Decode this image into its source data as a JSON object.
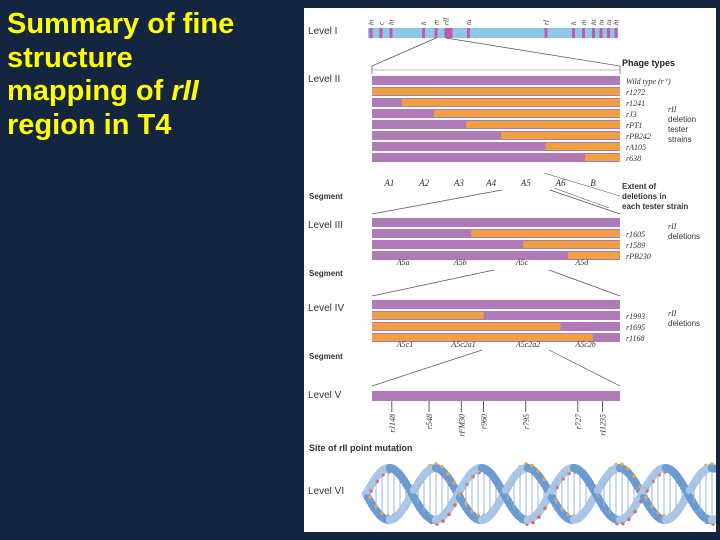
{
  "slide": {
    "title_lines": [
      "Summary of fine",
      "structure",
      "mapping of ",
      "region in T4"
    ],
    "title_gene": "rII",
    "title_color": "#ffff00",
    "background_color": "#13253f"
  },
  "figure": {
    "colors": {
      "bar": "#b07ab8",
      "deletion": "#f0a040",
      "level1_bar": "#8fc8e6",
      "helix": "#7aaad8"
    },
    "level_labels": [
      "Level I",
      "Level II",
      "Level III",
      "Level IV",
      "Level V",
      "Level VI"
    ],
    "level1_markers": [
      "ht",
      "c",
      "ht",
      "h",
      "m",
      "rII",
      "tu",
      "rI",
      "h",
      "m",
      "ht",
      "tu",
      "tu",
      "ht"
    ],
    "phage_types_heading": "Phage types",
    "wild_type_label": "Wild type (r⁺)",
    "level2": {
      "strains": [
        "r1272",
        "r1241",
        "rJ3",
        "rPT1",
        "rPB242",
        "rA105",
        "r638"
      ],
      "deletion_starts": [
        0.0,
        0.12,
        0.25,
        0.38,
        0.52,
        0.7,
        0.86
      ],
      "segments": [
        "A1",
        "A2",
        "A3",
        "A4",
        "A5",
        "A6",
        "B"
      ],
      "group_label": [
        "rII",
        "deletion",
        "tester",
        "strains"
      ],
      "extent_note": [
        "Extent of",
        "deletions in",
        "each tester strain"
      ]
    },
    "level3": {
      "strains": [
        "r1605",
        "r1589",
        "rPB230"
      ],
      "deletion_starts": [
        0.4,
        0.61,
        0.79
      ],
      "segments": [
        "A5a",
        "A5b",
        "A5c",
        "A5d"
      ],
      "group_label": [
        "rII",
        "deletions"
      ]
    },
    "level4": {
      "strains": [
        "r1993",
        "r1695",
        "r1168"
      ],
      "deletion_starts": [
        0.0,
        0.0,
        0.0
      ],
      "deletion_ends": [
        0.45,
        0.76,
        0.89
      ],
      "segments": [
        "A5c1",
        "A5c2a1",
        "A5c2a2",
        "A5c2b"
      ],
      "group_label": [
        "rII",
        "deletions"
      ]
    },
    "segment_caption": "Segment",
    "level5": {
      "mutations": [
        "rJ148",
        "r548",
        "rFM30",
        "r960",
        "r795",
        "r727",
        "rI1235"
      ]
    },
    "point_mutation_caption": "Site of rII point mutation"
  }
}
